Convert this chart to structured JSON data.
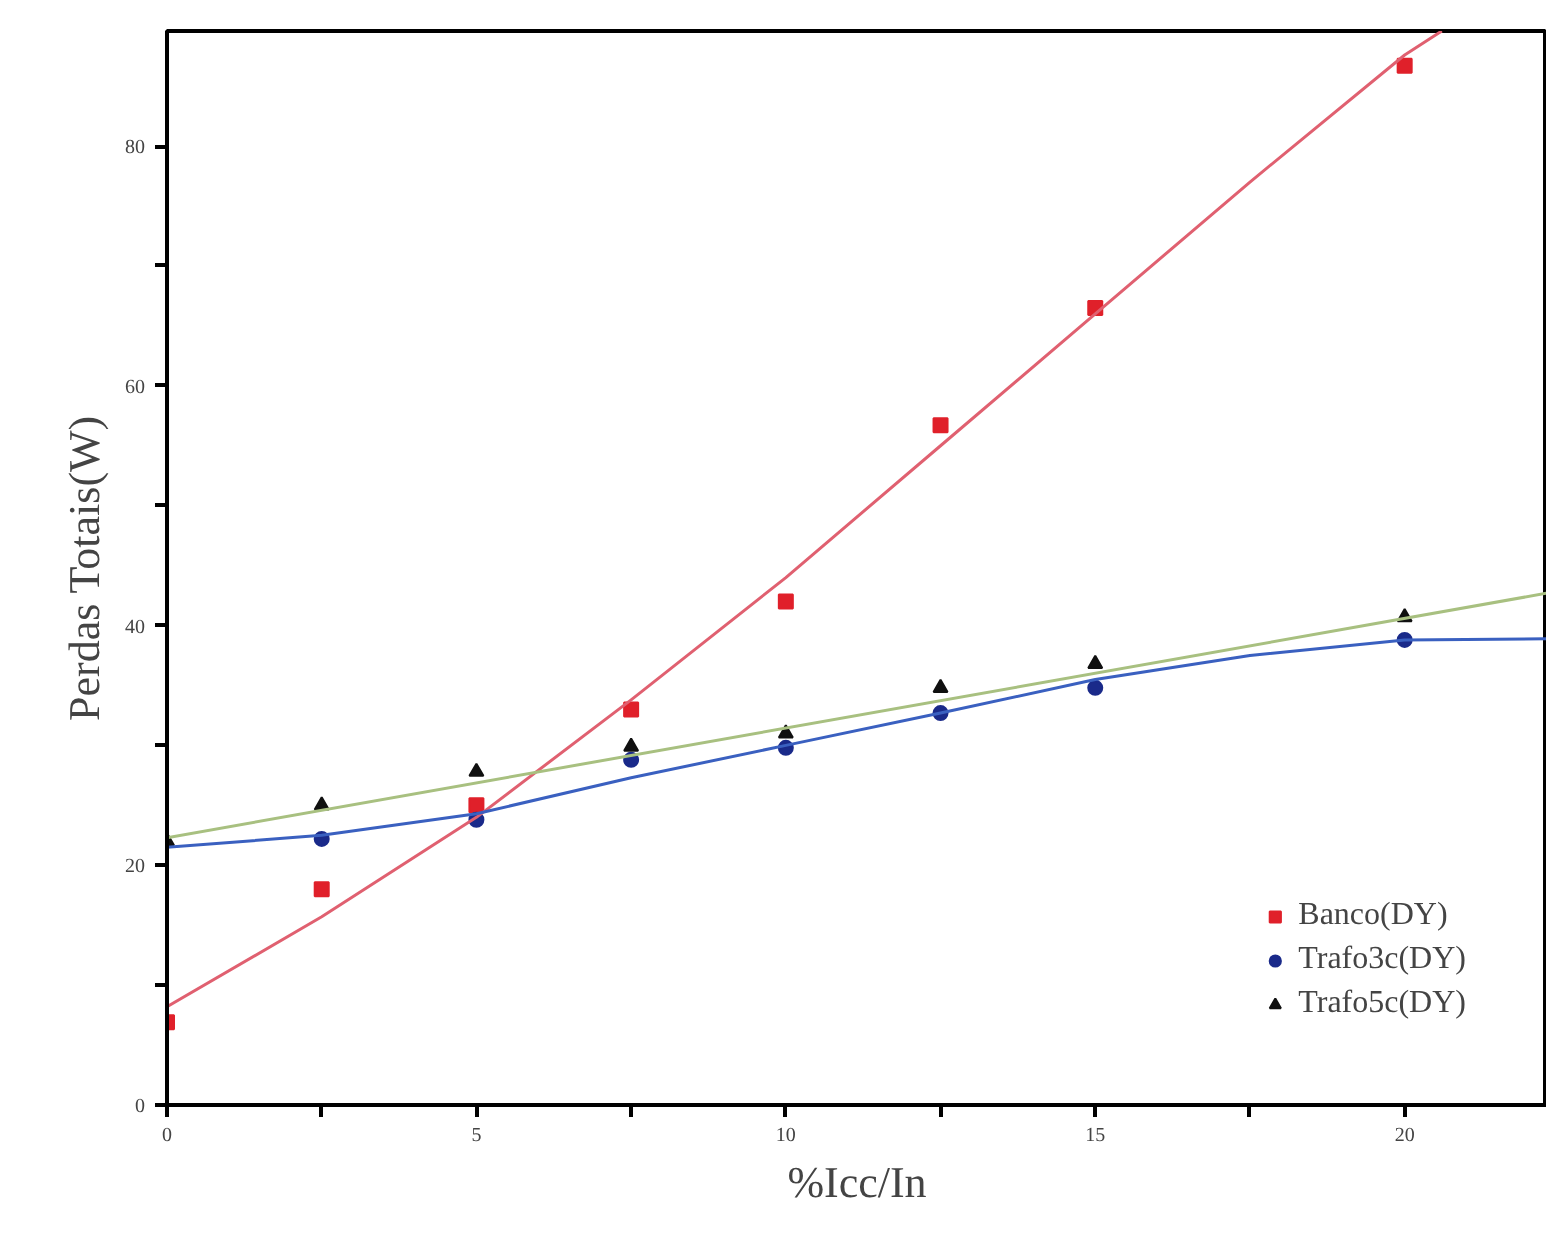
{
  "chart_data": {
    "type": "scatter",
    "xlabel": "%Icc/In",
    "ylabel": "Perdas Totais(W)",
    "xlim": [
      0,
      22.3
    ],
    "ylim": [
      0,
      89.6
    ],
    "xticks": [
      0,
      {
        "value": 2.5,
        "label": null
      },
      5,
      {
        "value": 7.5,
        "label": null
      },
      10,
      {
        "value": 12.5,
        "label": null
      },
      15,
      {
        "value": 17.5,
        "label": null
      },
      20
    ],
    "yticks": [
      0,
      {
        "value": 10,
        "label": null
      },
      20,
      {
        "value": 30,
        "label": null
      },
      40,
      {
        "value": 50,
        "label": null
      },
      60,
      {
        "value": 70,
        "label": null
      },
      80
    ],
    "grid": false,
    "legend": "bottom right",
    "series": [
      {
        "name": "Banco(DY)",
        "marker": "square",
        "color": "#e0202a",
        "x": [
          0,
          2.5,
          5,
          7.5,
          10,
          12.5,
          15,
          20
        ],
        "values": [
          6.9,
          18,
          25,
          33,
          42,
          56.7,
          66.5,
          86.7
        ]
      },
      {
        "name": "Trafo3c(DY)",
        "marker": "circle",
        "color": "#1a2a8a",
        "x": [
          2.5,
          5,
          7.5,
          10,
          12.5,
          15,
          20
        ],
        "values": [
          22.2,
          23.8,
          28.8,
          29.8,
          32.7,
          34.8,
          38.8
        ]
      },
      {
        "name": "Trafo5c(DY)",
        "marker": "triangle",
        "color": "#101010",
        "x": [
          0,
          2.5,
          5,
          7.5,
          10,
          12.5,
          15,
          20
        ],
        "values": [
          22,
          25,
          27.8,
          29.9,
          31,
          34.8,
          36.8,
          40.7
        ]
      },
      {
        "type": "line",
        "marker": "none",
        "color": "#e06070",
        "x": [
          0,
          2.5,
          5,
          7.5,
          10,
          12.5,
          15,
          17.5,
          20,
          20.6
        ],
        "values": [
          8.2,
          15.7,
          24,
          33.8,
          44,
          55,
          66,
          77,
          87.6,
          89.6
        ]
      },
      {
        "type": "line",
        "marker": "none",
        "color": "#3a60c0",
        "x": [
          0,
          2.5,
          5,
          7.5,
          10,
          12.5,
          15,
          17.5,
          20,
          22.3
        ],
        "values": [
          21.5,
          22.5,
          24.3,
          27.3,
          30,
          32.7,
          35.5,
          37.5,
          38.8,
          38.9
        ]
      },
      {
        "type": "line",
        "marker": "none",
        "color": "#a8c080",
        "x": [
          0,
          22.3
        ],
        "values": [
          22.3,
          42.7
        ]
      }
    ]
  }
}
